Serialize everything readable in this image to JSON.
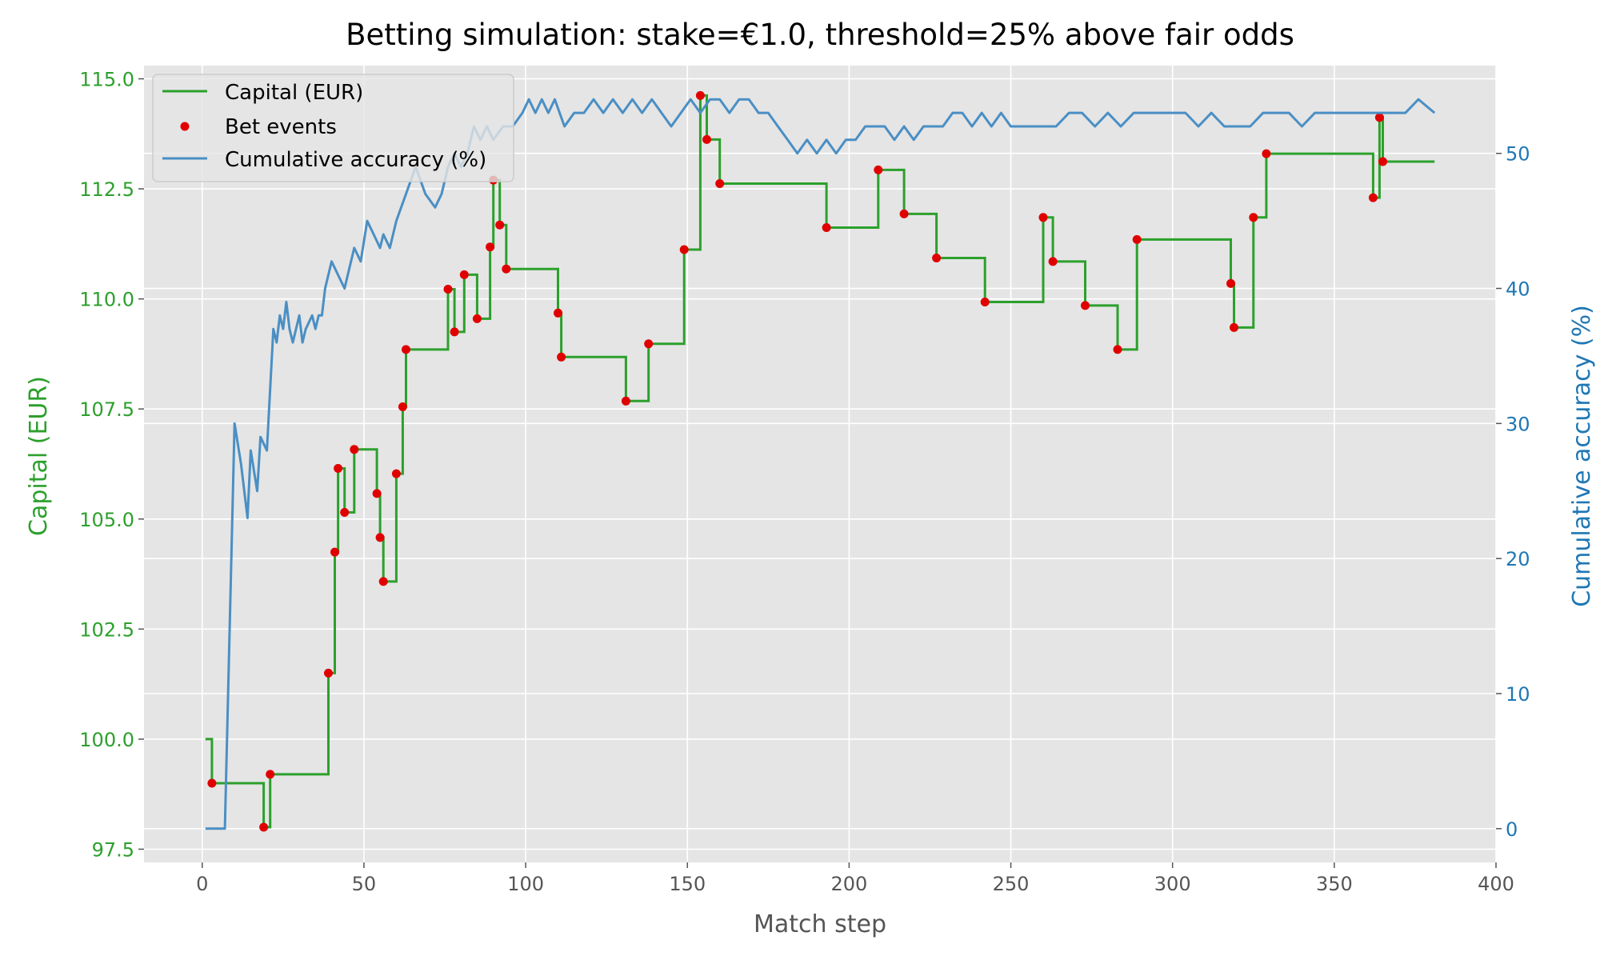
{
  "chart_data": {
    "type": "line",
    "title": "Betting simulation: stake=€1.0, threshold=25% above fair odds",
    "xlabel": "Match step",
    "ylabel_left": "Capital (EUR)",
    "ylabel_right": "Cumulative accuracy (%)",
    "xlim": [
      -18,
      400
    ],
    "ylim_left": [
      97.2,
      115.3
    ],
    "ylim_right": [
      -2.5,
      56.5
    ],
    "x_ticks": [
      0,
      50,
      100,
      150,
      200,
      250,
      300,
      350,
      400
    ],
    "x_tick_labels": [
      "0",
      "50",
      "100",
      "150",
      "200",
      "250",
      "300",
      "350",
      "400"
    ],
    "y_left_ticks": [
      97.5,
      100.0,
      102.5,
      105.0,
      107.5,
      110.0,
      112.5,
      115.0
    ],
    "y_left_tick_labels": [
      "97.5",
      "100.0",
      "102.5",
      "105.0",
      "107.5",
      "110.0",
      "112.5",
      "115.0"
    ],
    "y_right_ticks": [
      0,
      10,
      20,
      30,
      40,
      50
    ],
    "y_right_tick_labels": [
      "0",
      "10",
      "20",
      "30",
      "40",
      "50"
    ],
    "grid": true,
    "legend_position": "top-left",
    "legend": [
      {
        "label": "Capital (EUR)",
        "kind": "line",
        "color": "#2ca02c"
      },
      {
        "label": "Bet events",
        "kind": "marker",
        "color": "#e00000"
      },
      {
        "label": "Cumulative accuracy (%)",
        "kind": "line",
        "color": "#4a8fc4"
      }
    ],
    "colors": {
      "capital": "#2ca02c",
      "bets": "#e00000",
      "accuracy": "#4a8fc4",
      "left_axis": "#2ca02c",
      "right_axis": "#1f77b4",
      "plot_bg": "#e5e5e5",
      "grid": "#ffffff"
    },
    "series": [
      {
        "name": "Capital (EUR)",
        "axis": "left",
        "step": true,
        "x": [
          1,
          3,
          19,
          21,
          39,
          41,
          42,
          44,
          47,
          54,
          55,
          56,
          60,
          62,
          63,
          76,
          78,
          81,
          85,
          89,
          90,
          92,
          94,
          110,
          111,
          131,
          138,
          149,
          154,
          156,
          160,
          193,
          209,
          217,
          227,
          242,
          260,
          263,
          273,
          283,
          289,
          318,
          319,
          325,
          329,
          362,
          364,
          365,
          381
        ],
        "y": [
          100.0,
          99.0,
          98.0,
          99.2,
          101.5,
          104.25,
          106.15,
          105.15,
          106.58,
          105.58,
          104.58,
          103.58,
          106.03,
          107.55,
          108.85,
          110.22,
          109.25,
          110.55,
          109.55,
          111.18,
          112.7,
          111.68,
          110.68,
          109.68,
          108.68,
          107.68,
          108.98,
          111.12,
          114.62,
          113.62,
          112.62,
          111.62,
          112.93,
          111.93,
          110.93,
          109.93,
          111.85,
          110.85,
          109.85,
          108.85,
          111.35,
          110.35,
          109.35,
          111.85,
          113.3,
          112.3,
          114.12,
          113.12,
          113.12
        ]
      },
      {
        "name": "Bet events",
        "axis": "left",
        "kind": "scatter",
        "x": [
          3,
          19,
          21,
          39,
          41,
          42,
          44,
          47,
          54,
          55,
          56,
          60,
          62,
          63,
          76,
          78,
          81,
          85,
          89,
          90,
          92,
          94,
          110,
          111,
          131,
          138,
          149,
          154,
          156,
          160,
          193,
          209,
          217,
          227,
          242,
          260,
          263,
          273,
          283,
          289,
          318,
          319,
          325,
          329,
          362,
          364,
          365
        ],
        "y": [
          99.0,
          98.0,
          99.2,
          101.5,
          104.25,
          106.15,
          105.15,
          106.58,
          105.58,
          104.58,
          103.58,
          106.03,
          107.55,
          108.85,
          110.22,
          109.25,
          110.55,
          109.55,
          111.18,
          112.7,
          111.68,
          110.68,
          109.68,
          108.68,
          107.68,
          108.98,
          111.12,
          114.62,
          113.62,
          112.62,
          111.62,
          112.93,
          111.93,
          110.93,
          109.93,
          111.85,
          110.85,
          109.85,
          108.85,
          111.35,
          110.35,
          109.35,
          111.85,
          113.3,
          112.3,
          114.12,
          113.12
        ]
      },
      {
        "name": "Cumulative accuracy (%)",
        "axis": "right",
        "x": [
          1,
          7,
          10,
          12,
          14,
          15,
          17,
          18,
          20,
          22,
          23,
          24,
          25,
          26,
          27,
          28,
          30,
          31,
          32,
          34,
          35,
          36,
          37,
          38,
          40,
          42,
          44,
          45,
          47,
          49,
          51,
          53,
          55,
          56,
          58,
          60,
          63,
          66,
          69,
          72,
          74,
          76,
          78,
          80,
          82,
          84,
          86,
          88,
          90,
          93,
          96,
          99,
          101,
          103,
          105,
          107,
          109,
          112,
          115,
          118,
          121,
          124,
          127,
          130,
          133,
          136,
          139,
          142,
          145,
          148,
          151,
          154,
          157,
          160,
          163,
          166,
          169,
          172,
          175,
          178,
          181,
          184,
          187,
          190,
          193,
          196,
          199,
          202,
          205,
          208,
          211,
          214,
          217,
          220,
          223,
          226,
          229,
          232,
          235,
          238,
          241,
          244,
          247,
          250,
          253,
          256,
          260,
          264,
          268,
          272,
          276,
          280,
          284,
          288,
          292,
          296,
          300,
          304,
          308,
          312,
          316,
          320,
          324,
          328,
          332,
          336,
          340,
          344,
          348,
          352,
          356,
          360,
          364,
          368,
          372,
          376,
          381
        ],
        "y": [
          0,
          0,
          30,
          27,
          23,
          28,
          25,
          29,
          28,
          37,
          36,
          38,
          37,
          39,
          37,
          36,
          38,
          36,
          37,
          38,
          37,
          38,
          38,
          40,
          42,
          41,
          40,
          41,
          43,
          42,
          45,
          44,
          43,
          44,
          43,
          45,
          47,
          49,
          47,
          46,
          47,
          49,
          50,
          49,
          50,
          52,
          51,
          52,
          51,
          52,
          52,
          53,
          54,
          53,
          54,
          53,
          54,
          52,
          53,
          53,
          54,
          53,
          54,
          53,
          54,
          53,
          54,
          53,
          52,
          53,
          54,
          53,
          54,
          54,
          53,
          54,
          54,
          53,
          53,
          52,
          51,
          50,
          51,
          50,
          51,
          50,
          51,
          51,
          52,
          52,
          52,
          51,
          52,
          51,
          52,
          52,
          52,
          53,
          53,
          52,
          53,
          52,
          53,
          52,
          52,
          52,
          52,
          52,
          53,
          53,
          52,
          53,
          52,
          53,
          53,
          53,
          53,
          53,
          52,
          53,
          52,
          52,
          52,
          53,
          53,
          53,
          52,
          53,
          53,
          53,
          53,
          53,
          53,
          53,
          53,
          54,
          53
        ]
      }
    ]
  }
}
